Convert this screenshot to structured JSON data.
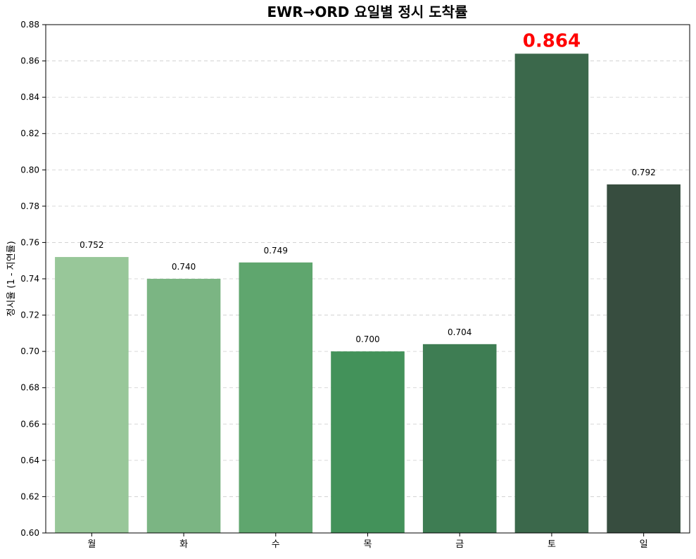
{
  "chart_data": {
    "type": "bar",
    "title": "EWR→ORD 요일별 정시 도착률",
    "xlabel": "",
    "ylabel": "정시율 (1 - 지연률)",
    "categories": [
      "월",
      "화",
      "수",
      "목",
      "금",
      "토",
      "일"
    ],
    "values": [
      0.752,
      0.74,
      0.749,
      0.7,
      0.704,
      0.864,
      0.792
    ],
    "value_labels": [
      "0.752",
      "0.740",
      "0.749",
      "0.700",
      "0.704",
      "0.864",
      "0.792"
    ],
    "highlight_index": 5,
    "highlight_color": "#ff0000",
    "bar_colors": [
      "#98c799",
      "#7bb583",
      "#5fa66e",
      "#43925a",
      "#3e7d53",
      "#3b684b",
      "#374d3f"
    ],
    "ylim": [
      0.6,
      0.88
    ],
    "yticks": [
      "0.60",
      "0.62",
      "0.64",
      "0.66",
      "0.68",
      "0.70",
      "0.72",
      "0.74",
      "0.76",
      "0.78",
      "0.80",
      "0.82",
      "0.84",
      "0.86",
      "0.88"
    ],
    "grid": true,
    "grid_axis": "y",
    "legend": "none"
  }
}
